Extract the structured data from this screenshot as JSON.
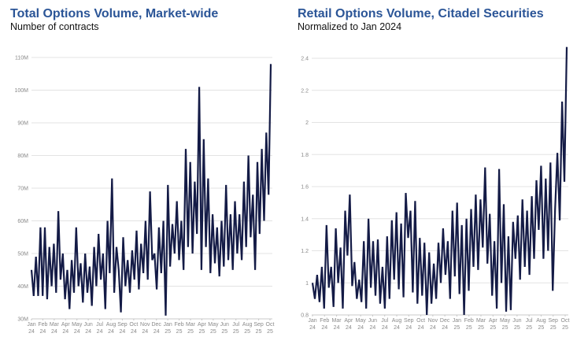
{
  "chart_data": [
    {
      "type": "line",
      "title": "Total Options Volume, Market-wide",
      "subtitle": "Number of contracts",
      "ylim": [
        30,
        110
      ],
      "yticks": [
        30,
        40,
        50,
        60,
        70,
        80,
        90,
        100,
        110
      ],
      "ytick_labels": [
        "30M",
        "40M",
        "50M",
        "60M",
        "70M",
        "80M",
        "90M",
        "100M",
        "110M"
      ],
      "grid": true,
      "line_color": "#141b46",
      "xtick_labels": [
        [
          "Jan",
          "24"
        ],
        [
          "Feb",
          "24"
        ],
        [
          "Mar",
          "24"
        ],
        [
          "Apr",
          "24"
        ],
        [
          "May",
          "24"
        ],
        [
          "Jun",
          "24"
        ],
        [
          "Jul",
          "24"
        ],
        [
          "Aug",
          "24"
        ],
        [
          "Sep",
          "24"
        ],
        [
          "Oct",
          "24"
        ],
        [
          "Nov",
          "24"
        ],
        [
          "Dec",
          "24"
        ],
        [
          "Jan",
          "25"
        ],
        [
          "Feb",
          "25"
        ],
        [
          "Mar",
          "25"
        ],
        [
          "Apr",
          "25"
        ],
        [
          "May",
          "25"
        ],
        [
          "Jun",
          "25"
        ],
        [
          "Jul",
          "25"
        ],
        [
          "Aug",
          "25"
        ],
        [
          "Sep",
          "25"
        ],
        [
          "Oct",
          "25"
        ]
      ],
      "values": [
        45,
        37,
        49,
        37,
        58,
        37,
        58,
        36,
        52,
        40,
        53,
        38,
        63,
        42,
        50,
        36,
        45,
        33,
        48,
        38,
        58,
        40,
        47,
        35,
        50,
        38,
        46,
        34,
        52,
        40,
        56,
        42,
        50,
        33,
        60,
        44,
        73,
        38,
        52,
        45,
        32,
        55,
        40,
        48,
        38,
        51,
        42,
        57,
        39,
        53,
        44,
        60,
        42,
        69,
        48,
        50,
        39,
        58,
        44,
        60,
        31,
        71,
        46,
        59,
        50,
        66,
        48,
        60,
        45,
        82,
        52,
        78,
        50,
        72,
        56,
        101,
        45,
        85,
        52,
        73,
        44,
        62,
        47,
        58,
        43,
        60,
        46,
        71,
        48,
        62,
        45,
        66,
        50,
        62,
        48,
        72,
        52,
        80,
        55,
        68,
        45,
        78,
        56,
        82,
        60,
        87,
        68,
        108
      ]
    },
    {
      "type": "line",
      "title": "Retail Options Volume, Citadel Securities",
      "subtitle": "Normalized to Jan 2024",
      "ylim": [
        0.8,
        2.4
      ],
      "yticks": [
        0.8,
        1.0,
        1.2,
        1.4,
        1.6,
        1.8,
        2.0,
        2.2,
        2.4
      ],
      "ytick_labels": [
        "0.8",
        "1",
        "1.2",
        "1.4",
        "1.6",
        "1.8",
        "2",
        "2.2",
        "2.4"
      ],
      "grid": true,
      "line_color": "#141b46",
      "xtick_labels": [
        [
          "Jan",
          "24"
        ],
        [
          "Feb",
          "24"
        ],
        [
          "Mar",
          "24"
        ],
        [
          "Apr",
          "24"
        ],
        [
          "May",
          "24"
        ],
        [
          "Jun",
          "24"
        ],
        [
          "Jul",
          "24"
        ],
        [
          "Aug",
          "24"
        ],
        [
          "Sep",
          "24"
        ],
        [
          "Oct",
          "24"
        ],
        [
          "Nov",
          "24"
        ],
        [
          "Dec",
          "24"
        ],
        [
          "Jan",
          "25"
        ],
        [
          "Feb",
          "25"
        ],
        [
          "Mar",
          "25"
        ],
        [
          "Apr",
          "25"
        ],
        [
          "May",
          "25"
        ],
        [
          "Jun",
          "25"
        ],
        [
          "Jul",
          "25"
        ],
        [
          "Aug",
          "25"
        ],
        [
          "Sep",
          "25"
        ],
        [
          "Oct",
          "25"
        ]
      ],
      "values": [
        1.0,
        0.9,
        1.05,
        0.88,
        1.1,
        0.84,
        1.36,
        0.97,
        1.1,
        0.85,
        1.34,
        1.0,
        1.22,
        0.84,
        1.45,
        1.17,
        1.55,
        0.98,
        1.13,
        0.9,
        1.02,
        0.88,
        1.26,
        0.84,
        1.4,
        0.97,
        1.26,
        0.92,
        1.27,
        0.87,
        1.1,
        0.84,
        1.29,
        0.9,
        1.39,
        1.02,
        1.44,
        0.96,
        1.37,
        0.91,
        1.56,
        1.28,
        1.45,
        0.94,
        1.51,
        0.87,
        1.28,
        0.92,
        1.25,
        0.8,
        1.19,
        0.87,
        1.12,
        0.9,
        1.25,
        1.0,
        1.34,
        1.05,
        1.26,
        0.9,
        1.45,
        1.04,
        1.5,
        0.93,
        1.36,
        0.8,
        1.4,
        0.95,
        1.46,
        1.1,
        1.55,
        1.08,
        1.52,
        1.22,
        1.72,
        1.12,
        1.43,
        0.92,
        1.26,
        0.84,
        1.71,
        1.0,
        1.49,
        0.82,
        1.29,
        0.83,
        1.38,
        1.15,
        1.42,
        1.02,
        1.52,
        1.1,
        1.45,
        1.05,
        1.54,
        1.15,
        1.64,
        1.33,
        1.73,
        1.15,
        1.65,
        1.2,
        1.75,
        0.95,
        1.46,
        1.81,
        1.39,
        2.13,
        1.63,
        2.47
      ]
    }
  ]
}
